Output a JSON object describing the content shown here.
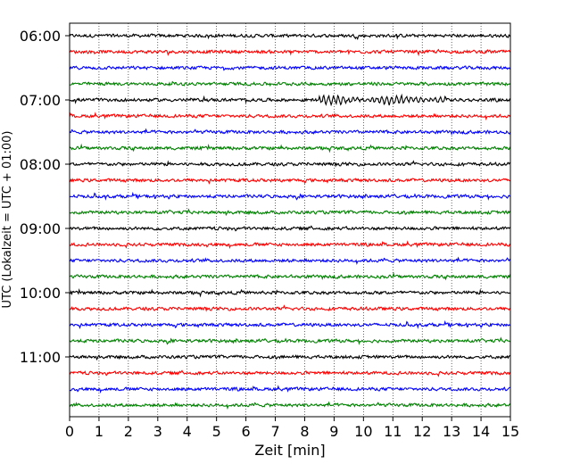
{
  "chart_data": {
    "type": "line",
    "title": "",
    "xlabel": "Zeit  [min]",
    "ylabel": "UTC (Lokalzeit = UTC + 01:00)",
    "xlim": [
      0,
      15
    ],
    "x_ticks": [
      0,
      1,
      2,
      3,
      4,
      5,
      6,
      7,
      8,
      9,
      10,
      11,
      12,
      13,
      14,
      15
    ],
    "y_tick_labels": [
      "06:00",
      "07:00",
      "08:00",
      "09:00",
      "10:00",
      "11:00"
    ],
    "trace_interval_minutes": 15,
    "start_time": "06:00",
    "trace_count": 24,
    "trace_colors": [
      "#000000",
      "#ff0000",
      "#0000ff",
      "#008000"
    ],
    "grid": "vertical dotted",
    "noise_amplitude": 2.2,
    "events": [
      {
        "trace": 4,
        "from_min": 8.5,
        "to_min": 12.8,
        "amplitude": 4.0
      }
    ]
  }
}
